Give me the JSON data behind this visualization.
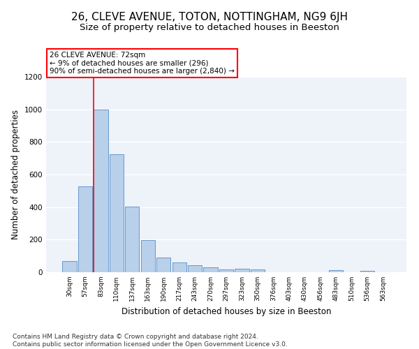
{
  "title": "26, CLEVE AVENUE, TOTON, NOTTINGHAM, NG9 6JH",
  "subtitle": "Size of property relative to detached houses in Beeston",
  "xlabel": "Distribution of detached houses by size in Beeston",
  "ylabel": "Number of detached properties",
  "categories": [
    "30sqm",
    "57sqm",
    "83sqm",
    "110sqm",
    "137sqm",
    "163sqm",
    "190sqm",
    "217sqm",
    "243sqm",
    "270sqm",
    "297sqm",
    "323sqm",
    "350sqm",
    "376sqm",
    "403sqm",
    "430sqm",
    "456sqm",
    "483sqm",
    "510sqm",
    "536sqm",
    "563sqm"
  ],
  "values": [
    68,
    527,
    997,
    725,
    403,
    197,
    90,
    62,
    42,
    32,
    18,
    20,
    17,
    0,
    0,
    0,
    0,
    11,
    0,
    10,
    0
  ],
  "bar_color": "#b8d0ea",
  "bar_edge_color": "#6699cc",
  "vline_index": 2,
  "vline_color": "red",
  "annotation_line1": "26 CLEVE AVENUE: 72sqm",
  "annotation_line2": "← 9% of detached houses are smaller (296)",
  "annotation_line3": "90% of semi-detached houses are larger (2,840) →",
  "annotation_box_color": "white",
  "annotation_box_edge_color": "red",
  "ylim": [
    0,
    1200
  ],
  "yticks": [
    0,
    200,
    400,
    600,
    800,
    1000,
    1200
  ],
  "footnote": "Contains HM Land Registry data © Crown copyright and database right 2024.\nContains public sector information licensed under the Open Government Licence v3.0.",
  "background_color": "#eef2f9",
  "grid_color": "white",
  "title_fontsize": 11,
  "subtitle_fontsize": 9.5,
  "ylabel_fontsize": 8.5,
  "xlabel_fontsize": 8.5,
  "tick_fontsize": 6.5,
  "footnote_fontsize": 6.5
}
